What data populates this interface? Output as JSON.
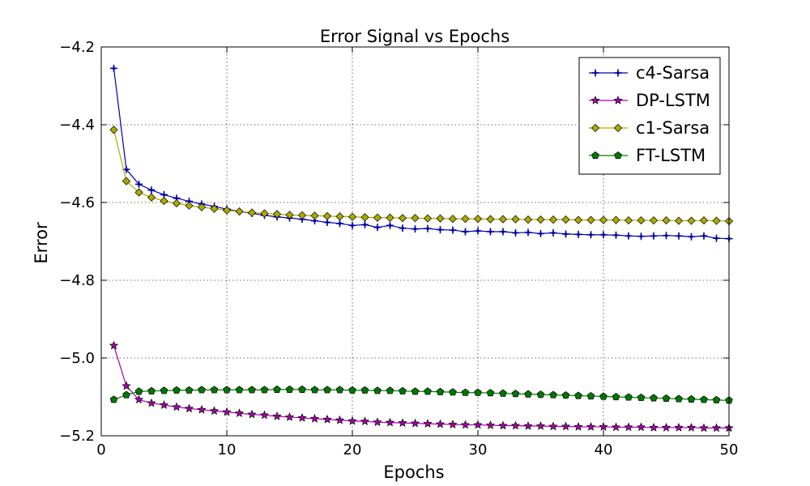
{
  "chart_data": {
    "type": "line",
    "title": "Error Signal vs Epochs",
    "xlabel": "Epochs",
    "ylabel": "Error",
    "xlim": [
      0,
      50
    ],
    "ylim": [
      -5.2,
      -4.2
    ],
    "xticks": [
      0,
      10,
      20,
      30,
      40,
      50
    ],
    "yticks": [
      -4.2,
      -4.4,
      -4.6,
      -4.8,
      -5.0,
      -5.2
    ],
    "xtick_labels": [
      "0",
      "10",
      "20",
      "30",
      "40",
      "50"
    ],
    "ytick_labels": [
      "−4.2",
      "−4.4",
      "−4.6",
      "−4.8",
      "−5.0",
      "−5.2"
    ],
    "grid": true,
    "legend_position": "top-right",
    "x": [
      1,
      2,
      3,
      4,
      5,
      6,
      7,
      8,
      9,
      10,
      11,
      12,
      13,
      14,
      15,
      16,
      17,
      18,
      19,
      20,
      21,
      22,
      23,
      24,
      25,
      26,
      27,
      28,
      29,
      30,
      31,
      32,
      33,
      34,
      35,
      36,
      37,
      38,
      39,
      40,
      41,
      42,
      43,
      44,
      45,
      46,
      47,
      48,
      49,
      50
    ],
    "series": [
      {
        "name": "c4-Sarsa",
        "color": "#0000aa",
        "marker": "plus",
        "values": [
          -4.255,
          -4.515,
          -4.553,
          -4.568,
          -4.58,
          -4.589,
          -4.597,
          -4.604,
          -4.61,
          -4.617,
          -4.623,
          -4.628,
          -4.633,
          -4.637,
          -4.64,
          -4.643,
          -4.647,
          -4.651,
          -4.654,
          -4.659,
          -4.657,
          -4.664,
          -4.659,
          -4.666,
          -4.668,
          -4.667,
          -4.67,
          -4.671,
          -4.675,
          -4.673,
          -4.675,
          -4.675,
          -4.678,
          -4.677,
          -4.68,
          -4.678,
          -4.681,
          -4.682,
          -4.683,
          -4.683,
          -4.684,
          -4.686,
          -4.687,
          -4.686,
          -4.685,
          -4.686,
          -4.688,
          -4.686,
          -4.692,
          -4.693
        ]
      },
      {
        "name": "DP-LSTM",
        "color": "#aa00aa",
        "marker": "star",
        "values": [
          -4.968,
          -5.072,
          -5.107,
          -5.116,
          -5.121,
          -5.126,
          -5.13,
          -5.133,
          -5.136,
          -5.139,
          -5.142,
          -5.145,
          -5.147,
          -5.15,
          -5.152,
          -5.154,
          -5.156,
          -5.158,
          -5.16,
          -5.162,
          -5.163,
          -5.165,
          -5.166,
          -5.167,
          -5.168,
          -5.169,
          -5.17,
          -5.171,
          -5.172,
          -5.172,
          -5.173,
          -5.174,
          -5.174,
          -5.175,
          -5.175,
          -5.176,
          -5.176,
          -5.177,
          -5.177,
          -5.177,
          -5.178,
          -5.178,
          -5.178,
          -5.179,
          -5.179,
          -5.179,
          -5.179,
          -5.18,
          -5.18,
          -5.18
        ]
      },
      {
        "name": "c1-Sarsa",
        "color": "#aaaa00",
        "marker": "diamond",
        "values": [
          -4.413,
          -4.545,
          -4.574,
          -4.587,
          -4.596,
          -4.602,
          -4.608,
          -4.612,
          -4.616,
          -4.62,
          -4.623,
          -4.626,
          -4.628,
          -4.63,
          -4.632,
          -4.633,
          -4.634,
          -4.635,
          -4.636,
          -4.637,
          -4.638,
          -4.639,
          -4.639,
          -4.64,
          -4.64,
          -4.641,
          -4.641,
          -4.642,
          -4.642,
          -4.642,
          -4.643,
          -4.643,
          -4.643,
          -4.644,
          -4.644,
          -4.644,
          -4.644,
          -4.645,
          -4.645,
          -4.645,
          -4.645,
          -4.646,
          -4.646,
          -4.646,
          -4.646,
          -4.647,
          -4.647,
          -4.646,
          -4.647,
          -4.648
        ]
      },
      {
        "name": "FT-LSTM",
        "color": "#007700",
        "marker": "pentagon",
        "values": [
          -5.107,
          -5.095,
          -5.086,
          -5.085,
          -5.084,
          -5.083,
          -5.083,
          -5.082,
          -5.082,
          -5.082,
          -5.082,
          -5.082,
          -5.082,
          -5.081,
          -5.081,
          -5.081,
          -5.082,
          -5.082,
          -5.082,
          -5.083,
          -5.083,
          -5.084,
          -5.084,
          -5.085,
          -5.086,
          -5.086,
          -5.087,
          -5.088,
          -5.089,
          -5.089,
          -5.09,
          -5.091,
          -5.092,
          -5.093,
          -5.094,
          -5.095,
          -5.096,
          -5.097,
          -5.098,
          -5.099,
          -5.1,
          -5.101,
          -5.102,
          -5.103,
          -5.104,
          -5.105,
          -5.106,
          -5.107,
          -5.108,
          -5.109
        ]
      }
    ]
  }
}
